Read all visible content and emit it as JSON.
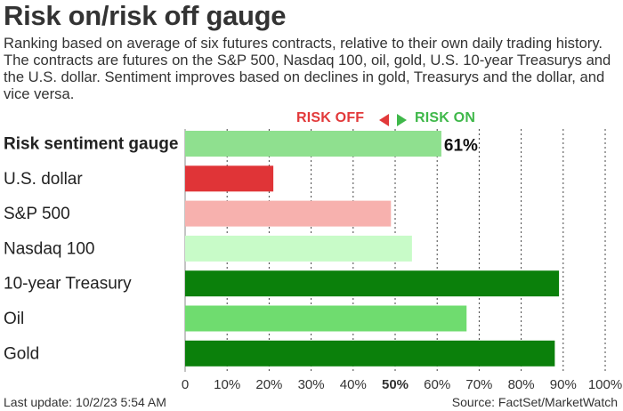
{
  "header": {
    "title": "Risk on/risk off gauge",
    "subtitle": "Ranking based on average of six futures contracts, relative to their own daily trading history. The contracts are futures on the S&P 500, Nasdaq 100, oil, gold, U.S. 10-year Treasurys and the U.S. dollar. Sentiment improves based on declines in gold, Treasurys and the dollar, and vice versa."
  },
  "legend": {
    "risk_off": "RISK OFF",
    "risk_on": "RISK ON"
  },
  "footer": {
    "last_update": "Last update: 10/2/23 5:54 AM",
    "source": "Source: FactSet/MarketWatch"
  },
  "colors": {
    "gauge_bar": "#8fe08f",
    "risk_off": "#e2393a",
    "risk_on": "#3fb84a"
  },
  "chart_data": {
    "type": "bar",
    "orientation": "horizontal",
    "title": "Risk on/risk off gauge",
    "categories": [
      "Risk sentiment gauge",
      "U.S. dollar",
      "S&P 500",
      "Nasdaq 100",
      "10-year Treasury",
      "Oil",
      "Gold"
    ],
    "values": [
      61,
      21,
      49,
      54,
      89,
      67,
      88
    ],
    "bar_colors": [
      "#8fe08f",
      "#e03437",
      "#f7b1ae",
      "#c8fbc8",
      "#0b800b",
      "#6fdc6f",
      "#0b800b"
    ],
    "value_labels": [
      "61%",
      "",
      "",
      "",
      "",
      "",
      ""
    ],
    "bold_categories": [
      true,
      false,
      false,
      false,
      false,
      false,
      false
    ],
    "xlim": [
      0,
      100
    ],
    "ticks": [
      0,
      10,
      20,
      30,
      40,
      50,
      60,
      70,
      80,
      90,
      100
    ],
    "tick_labels": [
      "0",
      "10%",
      "20%",
      "30%",
      "40%",
      "50%",
      "60%",
      "70%",
      "80%",
      "90%",
      "100%"
    ],
    "midpoint": 50,
    "grid": true,
    "xlabel": "",
    "ylabel": ""
  }
}
